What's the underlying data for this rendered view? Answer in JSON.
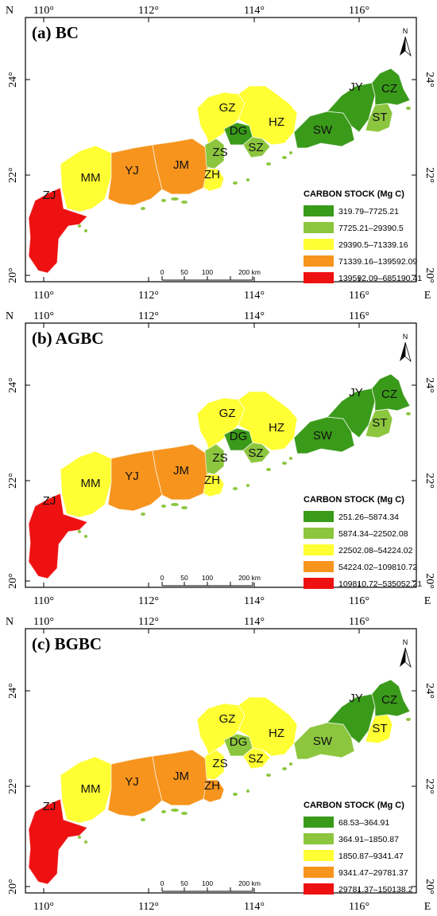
{
  "axis": {
    "top_ticks": [
      "110°",
      "112°",
      "114°",
      "116°"
    ],
    "bottom_ticks": [
      "110°",
      "112°",
      "114°",
      "116°"
    ],
    "left_ticks": [
      "24°",
      "22°",
      "20°"
    ],
    "right_ticks": [
      "24°",
      "22°",
      "20°"
    ],
    "north_corner": "N",
    "east_corner": "E"
  },
  "north_arrow": {
    "label": "N"
  },
  "scale_bar": {
    "labels": [
      "0",
      "50",
      "100",
      "200 km"
    ]
  },
  "panels": [
    {
      "label": "(a) BC",
      "legend_title": "CARBON STOCK (Mg C)",
      "classes": [
        {
          "range": "319.79–7725.21",
          "color": "#3a9a1a"
        },
        {
          "range": "7725.21–29390.5",
          "color": "#8cc63e"
        },
        {
          "range": "29390.5–71339.16",
          "color": "#ffff33"
        },
        {
          "range": "71339.16–139592.09",
          "color": "#f7941d"
        },
        {
          "range": "139592.09–685190.41",
          "color": "#ee1111"
        }
      ],
      "regions": {
        "ZJ": 4,
        "MM": 2,
        "YJ": 3,
        "JM": 3,
        "ZH": 2,
        "ZS": 1,
        "GZ": 2,
        "DG": 0,
        "SZ": 1,
        "HZ": 2,
        "SW": 0,
        "JY": 0,
        "ST": 1,
        "CZ": 0
      }
    },
    {
      "label": "(b) AGBC",
      "legend_title": "CARBON STOCK (Mg C)",
      "classes": [
        {
          "range": "251.26–5874.34",
          "color": "#3a9a1a"
        },
        {
          "range": "5874.34–22502.08",
          "color": "#8cc63e"
        },
        {
          "range": "22502.08–54224.02",
          "color": "#ffff33"
        },
        {
          "range": "54224.02–109810.72",
          "color": "#f7941d"
        },
        {
          "range": "109810.72–535052.21",
          "color": "#ee1111"
        }
      ],
      "regions": {
        "ZJ": 4,
        "MM": 2,
        "YJ": 3,
        "JM": 3,
        "ZH": 2,
        "ZS": 1,
        "GZ": 2,
        "DG": 0,
        "SZ": 1,
        "HZ": 2,
        "SW": 0,
        "JY": 0,
        "ST": 1,
        "CZ": 0
      }
    },
    {
      "label": "(c) BGBC",
      "legend_title": "CARBON STOCK (Mg C)",
      "classes": [
        {
          "range": "68.53–364.91",
          "color": "#3a9a1a"
        },
        {
          "range": "364.91–1850.87",
          "color": "#8cc63e"
        },
        {
          "range": "1850.87–9341.47",
          "color": "#ffff33"
        },
        {
          "range": "9341.47–29781.37",
          "color": "#f7941d"
        },
        {
          "range": "29781.37–150138.2",
          "color": "#ee1111"
        }
      ],
      "regions": {
        "ZJ": 4,
        "MM": 2,
        "YJ": 3,
        "JM": 3,
        "ZH": 3,
        "ZS": 2,
        "GZ": 2,
        "DG": 1,
        "SZ": 2,
        "HZ": 2,
        "SW": 1,
        "JY": 0,
        "ST": 2,
        "CZ": 0
      }
    }
  ]
}
